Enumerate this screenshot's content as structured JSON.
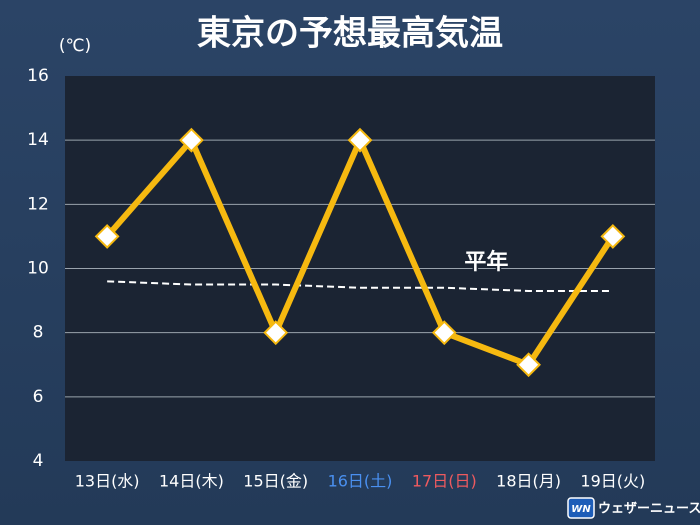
{
  "chart_data": {
    "type": "line",
    "title": "東京の予想最高気温",
    "unit": "(℃)",
    "categories": [
      "13日(水)",
      "14日(木)",
      "15日(金)",
      "16日(土)",
      "17日(日)",
      "18日(月)",
      "19日(火)"
    ],
    "category_colors": [
      "#ffffff",
      "#ffffff",
      "#ffffff",
      "#4a90f0",
      "#ee5a5f",
      "#ffffff",
      "#ffffff"
    ],
    "series": [
      {
        "color": "#f6b910",
        "values": [
          11,
          14,
          8,
          14,
          8,
          7,
          11
        ]
      },
      {
        "name": "平年",
        "color": "#ffffff",
        "dashed": true,
        "values": [
          9.6,
          9.5,
          9.5,
          9.4,
          9.4,
          9.3,
          9.3
        ]
      }
    ],
    "ylim": [
      4,
      16
    ],
    "yticks": [
      4,
      6,
      8,
      10,
      12,
      14,
      16
    ],
    "grid": true,
    "source_logo": "WN",
    "source": "ウェザーニュース"
  }
}
